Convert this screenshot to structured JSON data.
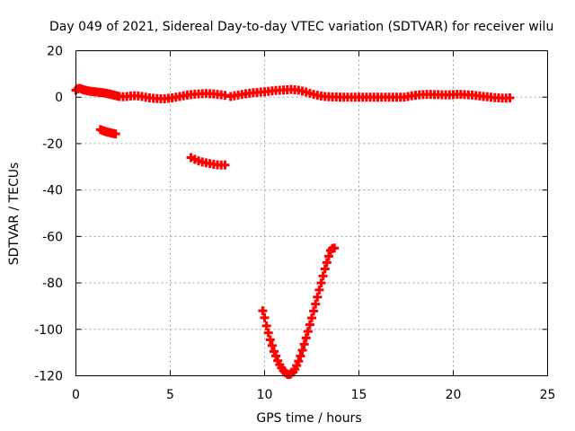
{
  "chart_data": {
    "type": "scatter",
    "title": "Day 049 of 2021, Sidereal Day-to-day VTEC variation (SDTVAR) for receiver wilu",
    "xlabel": "GPS time / hours",
    "ylabel": "SDTVAR / TECUs",
    "xlim": [
      0,
      25
    ],
    "ylim": [
      -120,
      20
    ],
    "x_ticks": [
      0,
      5,
      10,
      15,
      20,
      25
    ],
    "y_ticks": [
      -120,
      -100,
      -80,
      -60,
      -40,
      -20,
      0,
      20
    ],
    "x_tick_labels": [
      "0",
      "5",
      "10",
      "15",
      "20",
      "25"
    ],
    "y_tick_labels": [
      "-120",
      "-100",
      "-80",
      "-60",
      "-40",
      "-20",
      "0",
      "20"
    ],
    "grid": true,
    "marker": "+",
    "series_color": "#ff0000",
    "series": [
      {
        "points": [
          [
            0.0,
            3.0
          ],
          [
            0.1,
            3.6
          ],
          [
            0.2,
            3.8
          ],
          [
            0.3,
            3.5
          ],
          [
            0.4,
            3.2
          ],
          [
            0.5,
            3.0
          ],
          [
            0.6,
            2.8
          ],
          [
            0.7,
            2.6
          ],
          [
            0.8,
            2.5
          ],
          [
            0.9,
            2.4
          ],
          [
            1.0,
            2.3
          ],
          [
            1.1,
            2.2
          ],
          [
            1.2,
            2.1
          ],
          [
            1.3,
            2.0
          ],
          [
            1.4,
            1.9
          ],
          [
            1.5,
            1.8
          ],
          [
            1.6,
            1.7
          ],
          [
            1.7,
            1.5
          ],
          [
            1.8,
            1.3
          ],
          [
            1.9,
            1.1
          ],
          [
            2.0,
            0.9
          ],
          [
            2.1,
            0.7
          ],
          [
            2.2,
            0.5
          ],
          [
            2.3,
            0.3
          ],
          [
            2.5,
            0.2
          ],
          [
            2.7,
            0.3
          ],
          [
            2.9,
            0.5
          ],
          [
            3.1,
            0.6
          ],
          [
            3.3,
            0.5
          ],
          [
            3.5,
            0.3
          ],
          [
            3.7,
            0.0
          ],
          [
            3.9,
            -0.3
          ],
          [
            4.1,
            -0.5
          ],
          [
            4.3,
            -0.6
          ],
          [
            4.5,
            -0.7
          ],
          [
            4.7,
            -0.7
          ],
          [
            4.9,
            -0.5
          ],
          [
            5.1,
            -0.3
          ],
          [
            5.3,
            0.0
          ],
          [
            5.5,
            0.3
          ],
          [
            5.7,
            0.6
          ],
          [
            5.9,
            0.9
          ],
          [
            6.1,
            1.1
          ],
          [
            6.3,
            1.3
          ],
          [
            6.5,
            1.4
          ],
          [
            6.7,
            1.5
          ],
          [
            6.9,
            1.6
          ],
          [
            7.1,
            1.5
          ],
          [
            7.3,
            1.4
          ],
          [
            7.5,
            1.2
          ],
          [
            7.7,
            1.0
          ],
          [
            7.9,
            0.8
          ]
        ]
      },
      {
        "points": [
          [
            1.3,
            -14.0
          ],
          [
            1.4,
            -14.3
          ],
          [
            1.5,
            -14.6
          ],
          [
            1.6,
            -14.9
          ],
          [
            1.7,
            -15.1
          ],
          [
            1.8,
            -15.3
          ],
          [
            1.9,
            -15.5
          ],
          [
            2.0,
            -15.7
          ],
          [
            2.1,
            -15.8
          ]
        ]
      },
      {
        "points": [
          [
            8.2,
            0.3
          ],
          [
            8.4,
            0.6
          ],
          [
            8.6,
            0.9
          ],
          [
            8.8,
            1.2
          ],
          [
            9.0,
            1.5
          ],
          [
            9.2,
            1.7
          ],
          [
            9.4,
            1.9
          ],
          [
            9.6,
            2.0
          ],
          [
            9.8,
            2.2
          ],
          [
            10.0,
            2.3
          ],
          [
            10.2,
            2.5
          ],
          [
            10.4,
            2.7
          ],
          [
            10.6,
            2.9
          ],
          [
            10.8,
            3.0
          ],
          [
            11.0,
            3.1
          ],
          [
            11.2,
            3.2
          ],
          [
            11.4,
            3.3
          ],
          [
            11.6,
            3.2
          ],
          [
            11.8,
            3.0
          ],
          [
            12.0,
            2.6
          ],
          [
            12.2,
            2.2
          ],
          [
            12.4,
            1.7
          ],
          [
            12.6,
            1.2
          ],
          [
            12.8,
            0.8
          ],
          [
            13.0,
            0.5
          ],
          [
            13.2,
            0.3
          ],
          [
            13.4,
            0.2
          ],
          [
            13.6,
            0.1
          ],
          [
            13.8,
            0.1
          ],
          [
            14.0,
            0.0
          ],
          [
            14.2,
            0.0
          ],
          [
            14.4,
            0.0
          ],
          [
            14.6,
            0.0
          ],
          [
            14.8,
            0.0
          ],
          [
            15.0,
            0.0
          ],
          [
            15.2,
            0.0
          ],
          [
            15.4,
            0.0
          ],
          [
            15.6,
            0.0
          ],
          [
            15.8,
            0.0
          ],
          [
            16.0,
            0.0
          ],
          [
            16.2,
            0.0
          ],
          [
            16.4,
            0.0
          ],
          [
            16.6,
            0.0
          ],
          [
            16.8,
            0.0
          ],
          [
            17.0,
            0.0
          ],
          [
            17.2,
            0.0
          ],
          [
            17.4,
            0.0
          ]
        ]
      },
      {
        "points": [
          [
            6.1,
            -26.0
          ],
          [
            6.3,
            -26.8
          ],
          [
            6.5,
            -27.4
          ],
          [
            6.7,
            -27.9
          ],
          [
            6.9,
            -28.3
          ],
          [
            7.1,
            -28.6
          ],
          [
            7.3,
            -28.9
          ],
          [
            7.5,
            -29.1
          ],
          [
            7.7,
            -29.2
          ],
          [
            7.9,
            -29.2
          ]
        ]
      },
      {
        "points": [
          [
            9.9,
            -92.0
          ],
          [
            10.0,
            -95.0
          ],
          [
            10.1,
            -98.5
          ],
          [
            10.2,
            -101.5
          ],
          [
            10.3,
            -104.5
          ],
          [
            10.4,
            -107.0
          ],
          [
            10.5,
            -109.5
          ],
          [
            10.6,
            -111.5
          ],
          [
            10.7,
            -113.5
          ],
          [
            10.8,
            -115.2
          ],
          [
            10.9,
            -116.6
          ],
          [
            11.0,
            -117.8
          ],
          [
            11.1,
            -118.7
          ],
          [
            11.2,
            -119.3
          ],
          [
            11.3,
            -119.5
          ],
          [
            11.4,
            -119.2
          ],
          [
            11.5,
            -118.4
          ],
          [
            11.6,
            -117.2
          ],
          [
            11.7,
            -115.6
          ],
          [
            11.8,
            -113.7
          ],
          [
            11.9,
            -111.5
          ],
          [
            12.0,
            -109.0
          ],
          [
            12.1,
            -106.4
          ],
          [
            12.2,
            -103.7
          ],
          [
            12.3,
            -100.9
          ],
          [
            12.4,
            -98.0
          ],
          [
            12.5,
            -95.1
          ],
          [
            12.6,
            -92.1
          ],
          [
            12.7,
            -89.1
          ],
          [
            12.8,
            -86.1
          ],
          [
            12.9,
            -83.0
          ],
          [
            13.0,
            -80.0
          ],
          [
            13.1,
            -77.0
          ],
          [
            13.2,
            -74.0
          ],
          [
            13.3,
            -71.2
          ],
          [
            13.4,
            -68.5
          ],
          [
            13.5,
            -66.0
          ],
          [
            13.6,
            -65.2
          ],
          [
            13.7,
            -65.0
          ]
        ]
      },
      {
        "points": [
          [
            17.6,
            0.3
          ],
          [
            17.8,
            0.6
          ],
          [
            18.0,
            0.8
          ],
          [
            18.2,
            1.0
          ],
          [
            18.4,
            1.1
          ],
          [
            18.6,
            1.2
          ],
          [
            18.8,
            1.2
          ],
          [
            19.0,
            1.1
          ],
          [
            19.2,
            1.1
          ],
          [
            19.4,
            1.0
          ],
          [
            19.6,
            1.0
          ]
        ]
      },
      {
        "points": [
          [
            19.8,
            1.0
          ],
          [
            20.0,
            1.1
          ],
          [
            20.2,
            1.2
          ],
          [
            20.4,
            1.2
          ],
          [
            20.6,
            1.1
          ],
          [
            20.8,
            1.0
          ],
          [
            21.0,
            0.9
          ],
          [
            21.2,
            0.7
          ],
          [
            21.4,
            0.5
          ],
          [
            21.6,
            0.3
          ],
          [
            21.8,
            0.2
          ],
          [
            22.0,
            0.0
          ],
          [
            22.2,
            -0.2
          ],
          [
            22.4,
            -0.3
          ],
          [
            22.6,
            -0.4
          ],
          [
            22.8,
            -0.4
          ],
          [
            23.0,
            -0.3
          ]
        ]
      }
    ]
  }
}
